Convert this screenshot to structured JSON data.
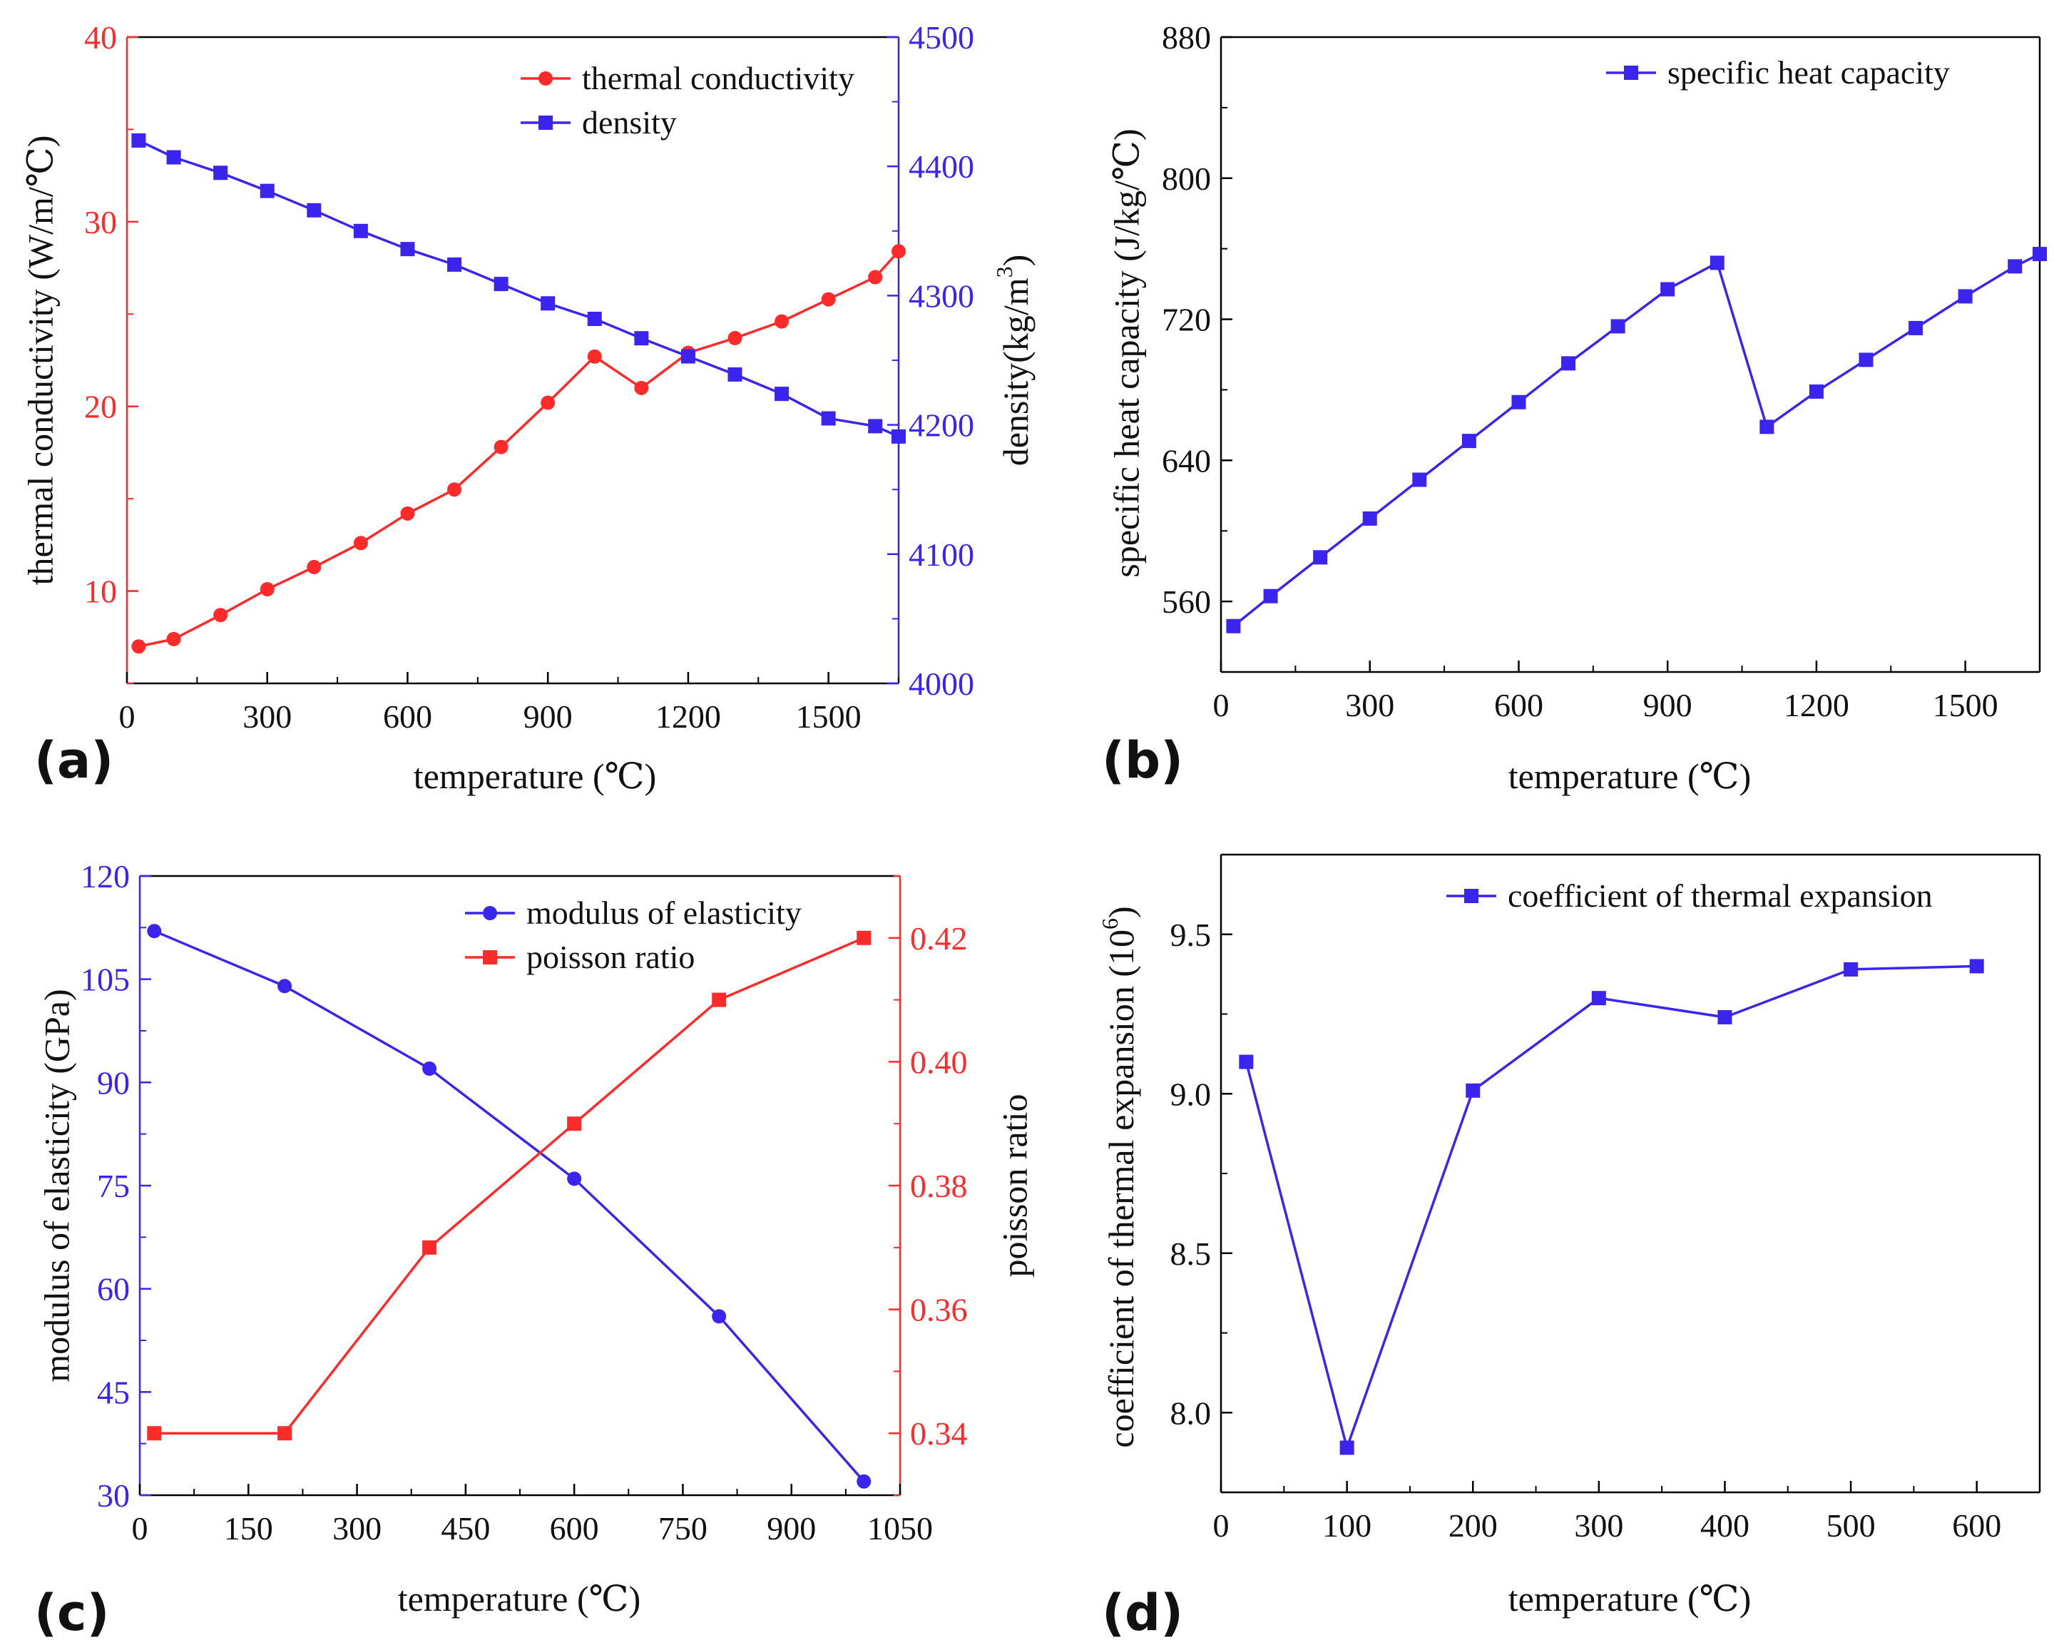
{
  "chart_data": [
    {
      "id": "a",
      "type": "line",
      "panel_label": "(a)",
      "xlabel": "temperature (℃)",
      "xlim": [
        0,
        1650
      ],
      "xticks": [
        0,
        300,
        600,
        900,
        1200,
        1500
      ],
      "ylabel": "thermal conductivity (W/m/℃)",
      "ylim": [
        5,
        40
      ],
      "yticks": [
        10,
        20,
        30,
        40
      ],
      "y2label": "density(kg/m3)",
      "y2label_parts": [
        "density(kg/m",
        "3",
        ")"
      ],
      "y2lim": [
        4000,
        4500
      ],
      "y2ticks": [
        4000,
        4100,
        4200,
        4300,
        4400,
        4500
      ],
      "left_axis_color": "#ff2a2a",
      "right_axis_color": "#3b25ee",
      "legend_position": "top-right",
      "series": [
        {
          "name": "thermal conductivity",
          "axis": "left",
          "color": "#ff2a2a",
          "marker": "circle",
          "x": [
            25,
            100,
            200,
            300,
            400,
            500,
            600,
            700,
            800,
            900,
            1000,
            1100,
            1200,
            1300,
            1400,
            1500,
            1600,
            1650
          ],
          "y": [
            7.0,
            7.4,
            8.7,
            10.1,
            11.3,
            12.6,
            14.2,
            15.5,
            17.8,
            20.2,
            22.7,
            21.0,
            22.9,
            23.7,
            24.6,
            25.8,
            27.0,
            28.4
          ]
        },
        {
          "name": "density",
          "axis": "right",
          "color": "#3b25ee",
          "marker": "square",
          "x": [
            25,
            100,
            200,
            300,
            400,
            500,
            600,
            700,
            800,
            900,
            1000,
            1100,
            1200,
            1300,
            1400,
            1500,
            1600,
            1650
          ],
          "y": [
            4420,
            4407,
            4395,
            4381,
            4366,
            4350,
            4336,
            4324,
            4309,
            4294,
            4282,
            4267,
            4253,
            4239,
            4224,
            4205,
            4199,
            4191
          ]
        }
      ]
    },
    {
      "id": "b",
      "type": "line",
      "panel_label": "(b)",
      "xlabel": "temperature (℃)",
      "xlim": [
        0,
        1650
      ],
      "xticks": [
        0,
        300,
        600,
        900,
        1200,
        1500
      ],
      "ylabel": "specific heat capacity (J/kg/℃)",
      "ylim": [
        520,
        880
      ],
      "yticks": [
        560,
        640,
        720,
        800,
        880
      ],
      "legend_position": "top-right",
      "series": [
        {
          "name": "specific heat capacity",
          "color": "#3b25ee",
          "marker": "square",
          "x": [
            25,
            100,
            200,
            300,
            400,
            500,
            600,
            700,
            800,
            900,
            1000,
            1100,
            1200,
            1300,
            1400,
            1500,
            1600,
            1650
          ],
          "y": [
            546,
            563,
            585,
            607,
            629,
            651,
            673,
            695,
            716,
            737,
            752,
            659,
            679,
            697,
            715,
            733,
            750,
            757
          ]
        }
      ]
    },
    {
      "id": "c",
      "type": "line",
      "panel_label": "(c)",
      "xlabel": "temperature (℃)",
      "xlim": [
        0,
        1050
      ],
      "xticks": [
        0,
        150,
        300,
        450,
        600,
        750,
        900,
        1050
      ],
      "ylabel": "modulus of elasticity (GPa)",
      "ylim": [
        30,
        120
      ],
      "yticks": [
        30,
        45,
        60,
        75,
        90,
        105,
        120
      ],
      "y2label": "poisson ratio",
      "y2lim": [
        0.33,
        0.43
      ],
      "y2ticks": [
        "0.34",
        "0.36",
        "0.38",
        "0.40",
        "0.42"
      ],
      "left_axis_color": "#3b25ee",
      "right_axis_color": "#ff2a2a",
      "legend_position": "top-right",
      "series": [
        {
          "name": "modulus of elasticity",
          "axis": "left",
          "color": "#3b25ee",
          "marker": "circle",
          "x": [
            20,
            200,
            400,
            600,
            800,
            1000
          ],
          "y": [
            112,
            104,
            92,
            76,
            56,
            32
          ]
        },
        {
          "name": "poisson ratio",
          "axis": "right",
          "color": "#ff2a2a",
          "marker": "square",
          "x": [
            20,
            200,
            400,
            600,
            800,
            1000
          ],
          "y": [
            0.34,
            0.34,
            0.37,
            0.39,
            0.41,
            0.42
          ]
        }
      ]
    },
    {
      "id": "d",
      "type": "line",
      "panel_label": "(d)",
      "xlabel": "temperature (℃)",
      "xlim": [
        0,
        650
      ],
      "xticks": [
        0,
        100,
        200,
        300,
        400,
        500,
        600
      ],
      "ylabel": "coefficient of thermal expansion (10",
      "ylabel_parts": [
        "coefficient of thermal expansion (10",
        "6",
        ")"
      ],
      "ylim": [
        7.75,
        9.75
      ],
      "yticks": [
        "8.0",
        "8.5",
        "9.0",
        "9.5"
      ],
      "legend_position": "top-right",
      "series": [
        {
          "name": "coefficient of thermal expansion",
          "color": "#3b25ee",
          "marker": "square",
          "x": [
            20,
            100,
            200,
            300,
            400,
            500,
            600
          ],
          "y": [
            9.1,
            7.89,
            9.01,
            9.3,
            9.24,
            9.39,
            9.4
          ]
        }
      ]
    }
  ]
}
